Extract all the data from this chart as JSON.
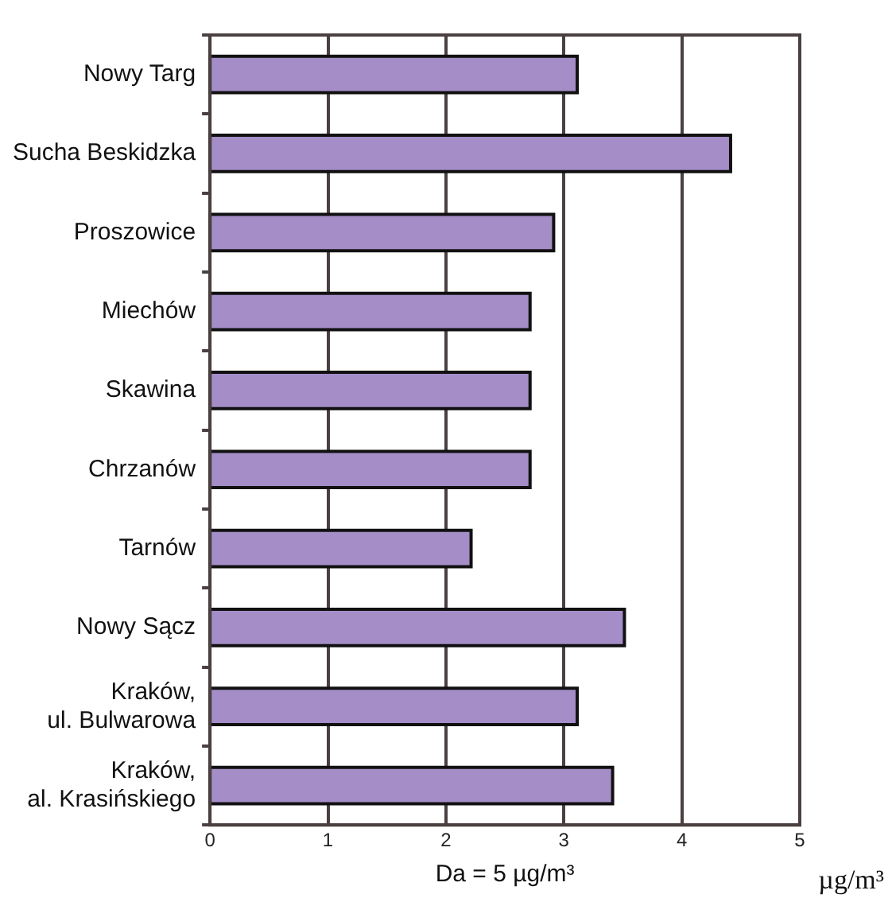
{
  "chart_data": {
    "type": "bar",
    "orientation": "horizontal",
    "categories": [
      "Nowy Targ",
      "Sucha Beskidzka",
      "Proszowice",
      "Miechów",
      "Skawina",
      "Chrzanów",
      "Tarnów",
      "Nowy Sącz",
      "Kraków,\nul. Bulwarowa",
      "Kraków,\nal. Krasińskiego"
    ],
    "values": [
      3.1,
      4.4,
      2.9,
      2.7,
      2.7,
      2.7,
      2.2,
      3.5,
      3.1,
      3.4
    ],
    "color": "#a58dc8",
    "xlim": [
      0,
      5
    ],
    "xticks": [
      0,
      1,
      2,
      3,
      4,
      5
    ],
    "xlabel": "Da = 5 µg/m³",
    "annotations": [
      "µg/m³"
    ],
    "grid": "x",
    "legend": false
  }
}
